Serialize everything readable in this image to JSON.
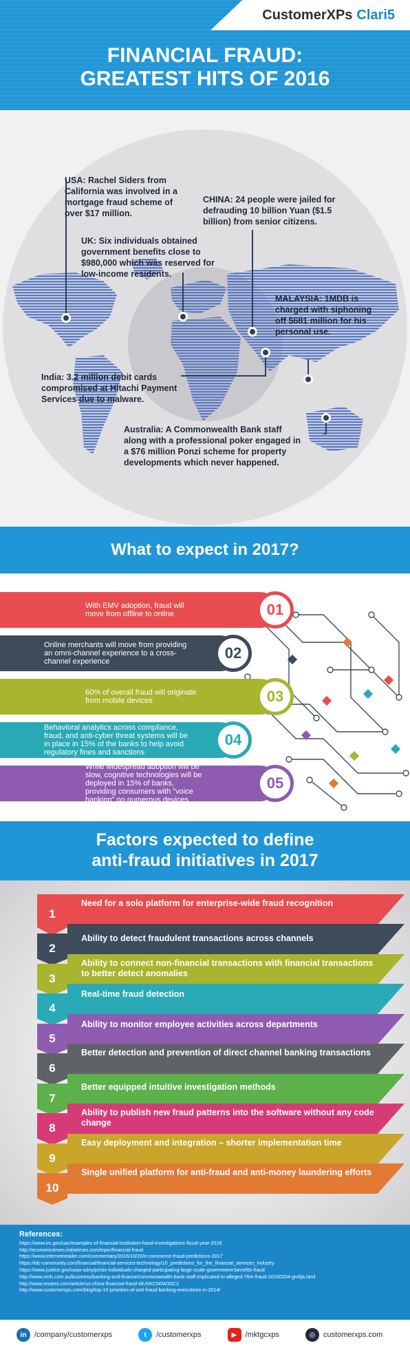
{
  "header": {
    "logo_left": "CustomerXPs",
    "logo_right": "Clari5",
    "title_line1": "FINANCIAL FRAUD:",
    "title_line2": "GREATEST HITS OF 2016"
  },
  "callouts": {
    "usa": "USA: Rachel Siders from California was involved in a mortgage fraud scheme of over $17 million.",
    "china": "CHINA: 24 people were jailed for defrauding 10 billion Yuan ($1.5 billion) from senior citizens.",
    "uk": "UK: Six individuals obtained government benefits close to $980,000 which was reserved for low-income residents.",
    "malaysia": "MALAYSIA: 1MDB is charged with siphoning off $681 million for his personal use.",
    "india": "India: 3.2 million debit cards compromised at Hitachi Payment Services due to malware.",
    "australia": "Australia: A Commonwealth Bank staff along with a professional poker engaged in a $76 million Ponzi scheme for property developments which never happened."
  },
  "expect": {
    "title": "What to expect in 2017?",
    "items": [
      {
        "num": "01",
        "text": "With EMV adoption, fraud will move from offline to online",
        "color": "#e84c4f"
      },
      {
        "num": "02",
        "text": "Online merchants will move from providing an omni-channel experience to a cross-channel experience",
        "color": "#3d4b5a"
      },
      {
        "num": "03",
        "text": "60% of overall fraud will originate from mobile devices",
        "color": "#a8b52e"
      },
      {
        "num": "04",
        "text": "Behavioral analytics across compliance, fraud, and anti-cyber threat systems will be in place in 15% of the banks to help avoid regulatory fines and sanctions",
        "color": "#2aa9b6"
      },
      {
        "num": "05",
        "text": "While widespread adoption will be slow, cognitive technologies will be deployed in 15% of banks, providing consumers with \"voice banking\" on numerous devices",
        "color": "#8e5bb0"
      }
    ]
  },
  "factors": {
    "title_line1": "Factors expected to define",
    "title_line2": "anti-fraud initiatives in 2017",
    "items": [
      {
        "num": "1",
        "text": "Need for a solo platform for enterprise-wide fraud recognition",
        "color": "#e84c4f"
      },
      {
        "num": "2",
        "text": "Ability to detect fraudulent transactions across channels",
        "color": "#3d4b5a"
      },
      {
        "num": "3",
        "text": "Ability to connect non-financial transactions with financial transactions to better detect anomalies",
        "color": "#a8b52e"
      },
      {
        "num": "4",
        "text": "Real-time fraud detection",
        "color": "#2aa9b6"
      },
      {
        "num": "5",
        "text": "Ability to monitor employee activities across departments",
        "color": "#8e5bb0"
      },
      {
        "num": "6",
        "text": "Better detection and prevention of direct channel banking transactions",
        "color": "#5f6367"
      },
      {
        "num": "7",
        "text": "Better equipped intuitive investigation methods",
        "color": "#5cb14a"
      },
      {
        "num": "8",
        "text": "Ability to publish new fraud patterns into the software without any code change",
        "color": "#d63b78"
      },
      {
        "num": "9",
        "text": "Easy deployment and integration – shorter implementation time",
        "color": "#c9a52b"
      },
      {
        "num": "10",
        "text": "Single unified platform for anti-fraud and anti-money laundering efforts",
        "color": "#e27a33"
      }
    ]
  },
  "references": {
    "title": "References:",
    "links": [
      "https://www.irs.gov/uac/examples-of-financial-institution-fraud-investigations-fiscal-year-2016",
      "http://economictimes.indiatimes.com/topic/financial-fraud",
      "https://www.internetretailer.com/commentary/2016/10/20/e-commerce-fraud-predictions-2017",
      "https://idc-community.com/financial/financial-services-technology/10_predictions_for_the_financial_services_industry",
      "https://www.justice.gov/usao-sdny/pr/six-individuals-charged-participating-large-scale-government-benefits-fraud",
      "http://www.smh.com.au/business/banking-and-finance/commonwealth-bank-staff-implicated-in-alleged-76m-fraud-20160204-gmlija.html",
      "http://www.reuters.com/article/us-china-financial-fraud-idUSKCN0W33C2",
      "http://www.customerxps.com/blog/top-10-priorities-of-anti-fraud-banking-executives-in-2014/"
    ]
  },
  "footer": {
    "linkedin": "/company/customerxps",
    "twitter": "/customerxps",
    "youtube": "/mktgcxps",
    "website": "customerxps.com"
  }
}
